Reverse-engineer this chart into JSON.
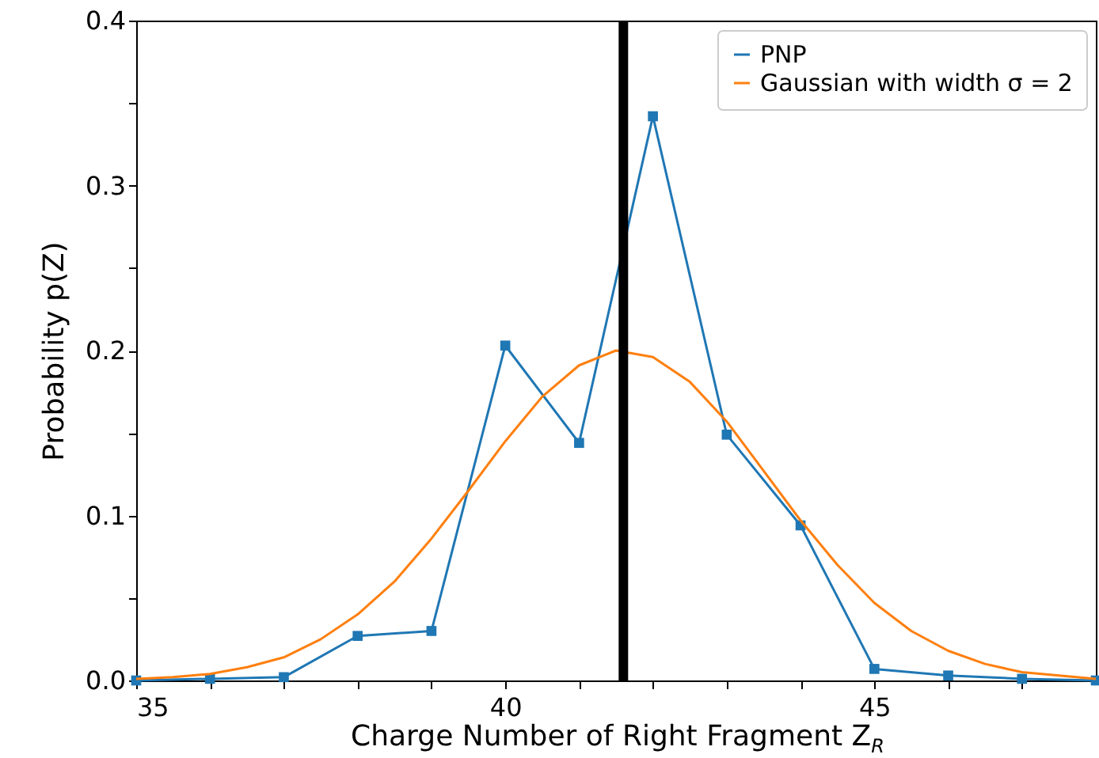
{
  "chart_data": {
    "type": "line",
    "xlabel": "Charge Number of Right Fragment Z$_{R}$",
    "ylabel": "Probability p(Z)",
    "xlim": [
      35,
      48
    ],
    "ylim": [
      0,
      0.4
    ],
    "xticks": [
      35,
      {
        "value": 36,
        "label": null
      },
      {
        "value": 37,
        "label": null
      },
      {
        "value": 38,
        "label": null
      },
      {
        "value": 39,
        "label": null
      },
      40,
      {
        "value": 41,
        "label": null
      },
      {
        "value": 42,
        "label": null
      },
      {
        "value": 43,
        "label": null
      },
      {
        "value": 44,
        "label": null
      },
      45,
      {
        "value": 46,
        "label": null
      },
      {
        "value": 47,
        "label": null
      }
    ],
    "yticks": [
      {
        "value": 0,
        "label": "0.0"
      },
      {
        "value": 0.05,
        "label": null
      },
      0.1,
      {
        "value": 0.15,
        "label": null
      },
      0.2,
      {
        "value": 0.25,
        "label": null
      },
      0.3,
      {
        "value": 0.35,
        "label": null
      },
      0.4
    ],
    "legend": "top right",
    "grid": false,
    "series": [
      {
        "name": "PNP",
        "color": "#1f77b4",
        "marker": "square",
        "x": [
          35,
          36,
          37,
          38,
          39,
          40,
          41,
          42,
          43,
          44,
          45,
          46,
          47,
          48
        ],
        "values": [
          0,
          0.001,
          0.002,
          0.027,
          0.03,
          0.203,
          0.144,
          0.342,
          0.149,
          0.094,
          0.007,
          0.003,
          0.001,
          0
        ]
      },
      {
        "name": "Gaussian with width σ = 2",
        "color": "#ff7f0e",
        "marker": "none",
        "x": [
          35,
          35.5,
          36,
          36.5,
          37,
          37.5,
          38,
          38.5,
          39,
          39.5,
          40,
          40.5,
          41,
          41.5,
          42,
          42.5,
          43,
          43.5,
          44,
          44.5,
          45,
          45.5,
          46,
          46.5,
          47,
          47.5,
          48
        ],
        "values": [
          0.001,
          0.002,
          0.004,
          0.008,
          0.014,
          0.025,
          0.04,
          0.06,
          0.086,
          0.115,
          0.145,
          0.172,
          0.191,
          0.2,
          0.196,
          0.181,
          0.157,
          0.127,
          0.097,
          0.07,
          0.047,
          0.03,
          0.018,
          0.01,
          0.005,
          0.003,
          0.001
        ]
      }
    ],
    "ref_lines": [
      {
        "axis": "x",
        "value": 41.6,
        "color": "#000000"
      }
    ]
  }
}
